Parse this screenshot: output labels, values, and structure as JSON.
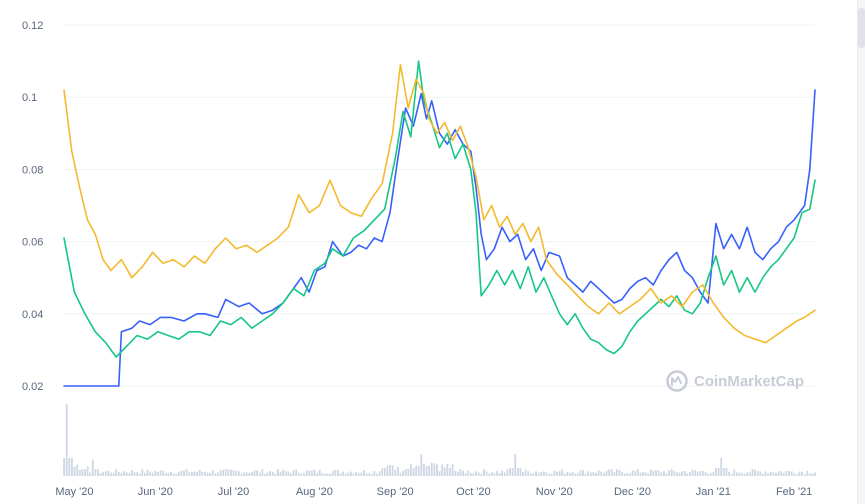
{
  "watermark": {
    "text": "CoinMarketCap",
    "icon": "coinmarketcap-logo-icon",
    "color": "#c7ccd6"
  },
  "chart_data": {
    "type": "line",
    "title": "",
    "xlabel": "",
    "ylabel": "",
    "x_ticks": [
      "May '20",
      "Jun '20",
      "Jul '20",
      "Aug '20",
      "Sep '20",
      "Oct '20",
      "Nov '20",
      "Dec '20",
      "Jan '21",
      "Feb '21"
    ],
    "y_ticks": [
      "0.02",
      "0.04",
      "0.06",
      "0.08",
      "0.1",
      "0.12"
    ],
    "ylim": [
      0.02,
      0.12
    ],
    "xlim": [
      "2020-04-27",
      "2021-02-09"
    ],
    "grid": true,
    "legend": "none",
    "series": [
      {
        "color": "#3861fb",
        "points": [
          [
            "2020-04-27",
            0.02
          ],
          [
            "2020-05-08",
            0.02
          ],
          [
            "2020-05-18",
            0.02
          ],
          [
            "2020-05-19",
            0.035
          ],
          [
            "2020-05-23",
            0.036
          ],
          [
            "2020-05-26",
            0.038
          ],
          [
            "2020-05-30",
            0.037
          ],
          [
            "2020-06-03",
            0.039
          ],
          [
            "2020-06-07",
            0.039
          ],
          [
            "2020-06-12",
            0.038
          ],
          [
            "2020-06-17",
            0.04
          ],
          [
            "2020-06-20",
            0.04
          ],
          [
            "2020-06-25",
            0.039
          ],
          [
            "2020-06-28",
            0.044
          ],
          [
            "2020-07-03",
            0.042
          ],
          [
            "2020-07-07",
            0.043
          ],
          [
            "2020-07-12",
            0.04
          ],
          [
            "2020-07-16",
            0.041
          ],
          [
            "2020-07-20",
            0.043
          ],
          [
            "2020-07-24",
            0.047
          ],
          [
            "2020-07-27",
            0.05
          ],
          [
            "2020-07-30",
            0.046
          ],
          [
            "2020-08-02",
            0.052
          ],
          [
            "2020-08-05",
            0.053
          ],
          [
            "2020-08-08",
            0.06
          ],
          [
            "2020-08-12",
            0.056
          ],
          [
            "2020-08-15",
            0.057
          ],
          [
            "2020-08-18",
            0.059
          ],
          [
            "2020-08-21",
            0.058
          ],
          [
            "2020-08-24",
            0.061
          ],
          [
            "2020-08-27",
            0.06
          ],
          [
            "2020-08-30",
            0.068
          ],
          [
            "2020-09-02",
            0.083
          ],
          [
            "2020-09-05",
            0.097
          ],
          [
            "2020-09-08",
            0.092
          ],
          [
            "2020-09-11",
            0.101
          ],
          [
            "2020-09-13",
            0.094
          ],
          [
            "2020-09-15",
            0.099
          ],
          [
            "2020-09-18",
            0.09
          ],
          [
            "2020-09-21",
            0.087
          ],
          [
            "2020-09-24",
            0.091
          ],
          [
            "2020-09-27",
            0.087
          ],
          [
            "2020-09-30",
            0.085
          ],
          [
            "2020-10-02",
            0.075
          ],
          [
            "2020-10-04",
            0.062
          ],
          [
            "2020-10-06",
            0.055
          ],
          [
            "2020-10-09",
            0.058
          ],
          [
            "2020-10-12",
            0.064
          ],
          [
            "2020-10-15",
            0.06
          ],
          [
            "2020-10-18",
            0.062
          ],
          [
            "2020-10-21",
            0.055
          ],
          [
            "2020-10-24",
            0.058
          ],
          [
            "2020-10-27",
            0.052
          ],
          [
            "2020-10-30",
            0.057
          ],
          [
            "2020-11-03",
            0.056
          ],
          [
            "2020-11-06",
            0.05
          ],
          [
            "2020-11-09",
            0.048
          ],
          [
            "2020-11-12",
            0.046
          ],
          [
            "2020-11-15",
            0.049
          ],
          [
            "2020-11-18",
            0.047
          ],
          [
            "2020-11-21",
            0.045
          ],
          [
            "2020-11-24",
            0.043
          ],
          [
            "2020-11-27",
            0.044
          ],
          [
            "2020-11-30",
            0.047
          ],
          [
            "2020-12-03",
            0.049
          ],
          [
            "2020-12-06",
            0.05
          ],
          [
            "2020-12-09",
            0.048
          ],
          [
            "2020-12-12",
            0.052
          ],
          [
            "2020-12-15",
            0.055
          ],
          [
            "2020-12-18",
            0.057
          ],
          [
            "2020-12-21",
            0.052
          ],
          [
            "2020-12-24",
            0.05
          ],
          [
            "2020-12-27",
            0.046
          ],
          [
            "2020-12-30",
            0.043
          ],
          [
            "2021-01-02",
            0.065
          ],
          [
            "2021-01-05",
            0.058
          ],
          [
            "2021-01-08",
            0.062
          ],
          [
            "2021-01-11",
            0.058
          ],
          [
            "2021-01-14",
            0.064
          ],
          [
            "2021-01-17",
            0.057
          ],
          [
            "2021-01-20",
            0.055
          ],
          [
            "2021-01-23",
            0.058
          ],
          [
            "2021-01-26",
            0.06
          ],
          [
            "2021-01-29",
            0.064
          ],
          [
            "2021-02-01",
            0.066
          ],
          [
            "2021-02-03",
            0.068
          ],
          [
            "2021-02-05",
            0.07
          ],
          [
            "2021-02-07",
            0.08
          ],
          [
            "2021-02-09",
            0.102
          ]
        ]
      },
      {
        "color": "#16c784",
        "points": [
          [
            "2020-04-27",
            0.061
          ],
          [
            "2020-05-01",
            0.046
          ],
          [
            "2020-05-05",
            0.04
          ],
          [
            "2020-05-09",
            0.035
          ],
          [
            "2020-05-13",
            0.032
          ],
          [
            "2020-05-17",
            0.028
          ],
          [
            "2020-05-21",
            0.031
          ],
          [
            "2020-05-25",
            0.034
          ],
          [
            "2020-05-29",
            0.033
          ],
          [
            "2020-06-02",
            0.035
          ],
          [
            "2020-06-06",
            0.034
          ],
          [
            "2020-06-10",
            0.033
          ],
          [
            "2020-06-14",
            0.035
          ],
          [
            "2020-06-18",
            0.035
          ],
          [
            "2020-06-22",
            0.034
          ],
          [
            "2020-06-26",
            0.038
          ],
          [
            "2020-06-30",
            0.037
          ],
          [
            "2020-07-04",
            0.039
          ],
          [
            "2020-07-08",
            0.036
          ],
          [
            "2020-07-12",
            0.038
          ],
          [
            "2020-07-16",
            0.04
          ],
          [
            "2020-07-20",
            0.043
          ],
          [
            "2020-07-24",
            0.047
          ],
          [
            "2020-07-28",
            0.045
          ],
          [
            "2020-08-01",
            0.052
          ],
          [
            "2020-08-05",
            0.054
          ],
          [
            "2020-08-08",
            0.058
          ],
          [
            "2020-08-12",
            0.056
          ],
          [
            "2020-08-16",
            0.061
          ],
          [
            "2020-08-20",
            0.063
          ],
          [
            "2020-08-24",
            0.066
          ],
          [
            "2020-08-28",
            0.069
          ],
          [
            "2020-09-01",
            0.083
          ],
          [
            "2020-09-04",
            0.096
          ],
          [
            "2020-09-07",
            0.089
          ],
          [
            "2020-09-10",
            0.11
          ],
          [
            "2020-09-12",
            0.099
          ],
          [
            "2020-09-15",
            0.093
          ],
          [
            "2020-09-18",
            0.086
          ],
          [
            "2020-09-21",
            0.09
          ],
          [
            "2020-09-24",
            0.083
          ],
          [
            "2020-09-27",
            0.087
          ],
          [
            "2020-09-30",
            0.08
          ],
          [
            "2020-10-02",
            0.068
          ],
          [
            "2020-10-04",
            0.045
          ],
          [
            "2020-10-07",
            0.048
          ],
          [
            "2020-10-10",
            0.052
          ],
          [
            "2020-10-13",
            0.048
          ],
          [
            "2020-10-16",
            0.052
          ],
          [
            "2020-10-19",
            0.047
          ],
          [
            "2020-10-22",
            0.053
          ],
          [
            "2020-10-25",
            0.046
          ],
          [
            "2020-10-28",
            0.05
          ],
          [
            "2020-10-31",
            0.045
          ],
          [
            "2020-11-03",
            0.04
          ],
          [
            "2020-11-06",
            0.037
          ],
          [
            "2020-11-09",
            0.04
          ],
          [
            "2020-11-12",
            0.036
          ],
          [
            "2020-11-15",
            0.033
          ],
          [
            "2020-11-18",
            0.032
          ],
          [
            "2020-11-21",
            0.03
          ],
          [
            "2020-11-24",
            0.029
          ],
          [
            "2020-11-27",
            0.031
          ],
          [
            "2020-11-30",
            0.035
          ],
          [
            "2020-12-03",
            0.038
          ],
          [
            "2020-12-06",
            0.04
          ],
          [
            "2020-12-09",
            0.042
          ],
          [
            "2020-12-12",
            0.044
          ],
          [
            "2020-12-15",
            0.042
          ],
          [
            "2020-12-18",
            0.045
          ],
          [
            "2020-12-21",
            0.041
          ],
          [
            "2020-12-24",
            0.04
          ],
          [
            "2020-12-27",
            0.043
          ],
          [
            "2020-12-30",
            0.05
          ],
          [
            "2021-01-02",
            0.056
          ],
          [
            "2021-01-05",
            0.048
          ],
          [
            "2021-01-08",
            0.052
          ],
          [
            "2021-01-11",
            0.046
          ],
          [
            "2021-01-14",
            0.05
          ],
          [
            "2021-01-17",
            0.046
          ],
          [
            "2021-01-20",
            0.05
          ],
          [
            "2021-01-23",
            0.053
          ],
          [
            "2021-01-26",
            0.055
          ],
          [
            "2021-01-29",
            0.058
          ],
          [
            "2021-02-01",
            0.061
          ],
          [
            "2021-02-04",
            0.068
          ],
          [
            "2021-02-07",
            0.069
          ],
          [
            "2021-02-09",
            0.077
          ]
        ]
      },
      {
        "color": "#f3ba2f",
        "points": [
          [
            "2020-04-27",
            0.102
          ],
          [
            "2020-04-30",
            0.085
          ],
          [
            "2020-05-03",
            0.075
          ],
          [
            "2020-05-06",
            0.066
          ],
          [
            "2020-05-09",
            0.062
          ],
          [
            "2020-05-12",
            0.055
          ],
          [
            "2020-05-15",
            0.052
          ],
          [
            "2020-05-19",
            0.055
          ],
          [
            "2020-05-23",
            0.05
          ],
          [
            "2020-05-27",
            0.053
          ],
          [
            "2020-05-31",
            0.057
          ],
          [
            "2020-06-04",
            0.054
          ],
          [
            "2020-06-08",
            0.055
          ],
          [
            "2020-06-12",
            0.053
          ],
          [
            "2020-06-16",
            0.056
          ],
          [
            "2020-06-20",
            0.054
          ],
          [
            "2020-06-24",
            0.058
          ],
          [
            "2020-06-28",
            0.061
          ],
          [
            "2020-07-02",
            0.058
          ],
          [
            "2020-07-06",
            0.059
          ],
          [
            "2020-07-10",
            0.057
          ],
          [
            "2020-07-14",
            0.059
          ],
          [
            "2020-07-18",
            0.061
          ],
          [
            "2020-07-22",
            0.064
          ],
          [
            "2020-07-26",
            0.073
          ],
          [
            "2020-07-30",
            0.068
          ],
          [
            "2020-08-03",
            0.07
          ],
          [
            "2020-08-07",
            0.077
          ],
          [
            "2020-08-11",
            0.07
          ],
          [
            "2020-08-15",
            0.068
          ],
          [
            "2020-08-19",
            0.067
          ],
          [
            "2020-08-23",
            0.072
          ],
          [
            "2020-08-27",
            0.076
          ],
          [
            "2020-08-31",
            0.09
          ],
          [
            "2020-09-03",
            0.109
          ],
          [
            "2020-09-06",
            0.097
          ],
          [
            "2020-09-09",
            0.105
          ],
          [
            "2020-09-12",
            0.101
          ],
          [
            "2020-09-14",
            0.094
          ],
          [
            "2020-09-17",
            0.09
          ],
          [
            "2020-09-20",
            0.093
          ],
          [
            "2020-09-23",
            0.088
          ],
          [
            "2020-09-26",
            0.092
          ],
          [
            "2020-09-29",
            0.086
          ],
          [
            "2020-10-02",
            0.078
          ],
          [
            "2020-10-05",
            0.066
          ],
          [
            "2020-10-08",
            0.07
          ],
          [
            "2020-10-11",
            0.064
          ],
          [
            "2020-10-14",
            0.067
          ],
          [
            "2020-10-17",
            0.062
          ],
          [
            "2020-10-20",
            0.065
          ],
          [
            "2020-10-23",
            0.06
          ],
          [
            "2020-10-26",
            0.064
          ],
          [
            "2020-10-29",
            0.055
          ],
          [
            "2020-11-02",
            0.051
          ],
          [
            "2020-11-06",
            0.048
          ],
          [
            "2020-11-10",
            0.045
          ],
          [
            "2020-11-14",
            0.042
          ],
          [
            "2020-11-18",
            0.04
          ],
          [
            "2020-11-22",
            0.043
          ],
          [
            "2020-11-26",
            0.04
          ],
          [
            "2020-11-30",
            0.042
          ],
          [
            "2020-12-04",
            0.044
          ],
          [
            "2020-12-08",
            0.047
          ],
          [
            "2020-12-12",
            0.043
          ],
          [
            "2020-12-16",
            0.045
          ],
          [
            "2020-12-20",
            0.042
          ],
          [
            "2020-12-24",
            0.046
          ],
          [
            "2020-12-28",
            0.048
          ],
          [
            "2021-01-01",
            0.043
          ],
          [
            "2021-01-05",
            0.039
          ],
          [
            "2021-01-09",
            0.036
          ],
          [
            "2021-01-13",
            0.034
          ],
          [
            "2021-01-17",
            0.033
          ],
          [
            "2021-01-21",
            0.032
          ],
          [
            "2021-01-25",
            0.034
          ],
          [
            "2021-01-29",
            0.036
          ],
          [
            "2021-02-02",
            0.038
          ],
          [
            "2021-02-05",
            0.039
          ],
          [
            "2021-02-09",
            0.041
          ]
        ]
      }
    ],
    "volume": {
      "color": "#cfd6e4",
      "spike_dates": [
        "2020-04-28",
        "2020-09-11",
        "2020-10-17",
        "2021-01-04"
      ]
    }
  }
}
